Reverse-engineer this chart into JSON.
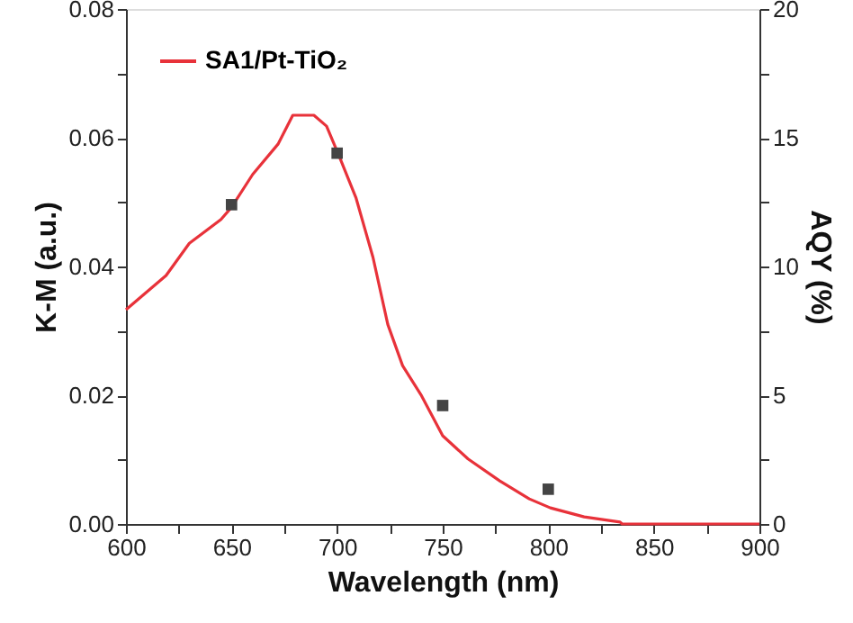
{
  "chart_data": {
    "type": "line",
    "xlabel": "Wavelength (nm)",
    "ylabel": "K-M (a.u.)",
    "y2label": "AQY (%)",
    "xlim": [
      600,
      900
    ],
    "xticks": [
      600,
      {
        "value": 625,
        "label": null
      },
      650,
      {
        "value": 675,
        "label": null
      },
      700,
      {
        "value": 725,
        "label": null
      },
      750,
      {
        "value": 775,
        "label": null
      },
      800,
      {
        "value": 825,
        "label": null
      },
      850,
      {
        "value": 875,
        "label": null
      },
      900
    ],
    "ylim": [
      0,
      0.08
    ],
    "yticks": [
      {
        "value": 0,
        "label": "0.00"
      },
      {
        "value": 0.01,
        "label": null
      },
      {
        "value": 0.02,
        "label": "0.02"
      },
      {
        "value": 0.03,
        "label": null
      },
      {
        "value": 0.04,
        "label": "0.04"
      },
      {
        "value": 0.05,
        "label": null
      },
      {
        "value": 0.06,
        "label": "0.06"
      },
      {
        "value": 0.07,
        "label": null
      },
      {
        "value": 0.08,
        "label": "0.08"
      }
    ],
    "y2lim": [
      0,
      20
    ],
    "y2ticks": [
      0,
      {
        "value": 2.5,
        "label": null
      },
      5,
      {
        "value": 7.5,
        "label": null
      },
      10,
      {
        "value": 12.5,
        "label": null
      },
      15,
      {
        "value": 17.5,
        "label": null
      },
      20
    ],
    "legend": "top left",
    "grid": false,
    "series": [
      {
        "name": "SA1/Pt-TiO₂",
        "type": "line",
        "color": "#e8323a",
        "marker": "none",
        "line_style": "solid",
        "x": [
          600,
          619,
          630,
          645,
          650,
          660,
          672,
          679,
          689,
          695,
          701,
          709,
          717,
          724,
          731,
          740,
          750,
          762,
          777,
          791,
          801,
          817,
          834,
          835,
          900
        ],
        "values": [
          0.0333,
          0.0386,
          0.0436,
          0.0473,
          0.0492,
          0.0543,
          0.059,
          0.0635,
          0.0635,
          0.0618,
          0.0571,
          0.0506,
          0.0414,
          0.031,
          0.0246,
          0.0199,
          0.0137,
          0.0101,
          0.0067,
          0.0039,
          0.0025,
          0.0011,
          0.0003,
          0,
          0
        ]
      },
      {
        "type": "scatter",
        "axis": "y2",
        "color": "#444444",
        "marker": "square",
        "x": [
          650,
          700,
          750,
          800
        ],
        "values": [
          12.4,
          14.4,
          4.6,
          1.35
        ]
      }
    ]
  }
}
